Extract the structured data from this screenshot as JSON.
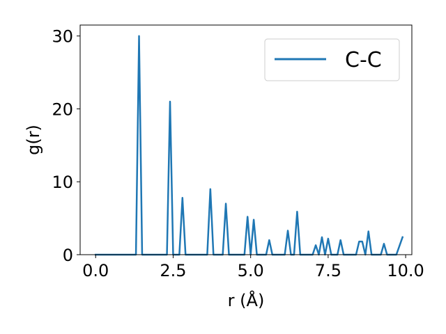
{
  "chart_data": {
    "type": "line",
    "xlabel": "r (Å)",
    "ylabel": "g(r)",
    "xlim": [
      -0.5,
      10.2
    ],
    "ylim": [
      0,
      31.5
    ],
    "grid": false,
    "legend": {
      "position": "upper-right",
      "entries": [
        "C-C"
      ]
    },
    "x_ticks": [
      {
        "value": 0.0,
        "label": "0.0"
      },
      {
        "value": 2.5,
        "label": "2.5"
      },
      {
        "value": 5.0,
        "label": "5.0"
      },
      {
        "value": 7.5,
        "label": "7.5"
      },
      {
        "value": 10.0,
        "label": "10.0"
      }
    ],
    "y_ticks": [
      {
        "value": 0,
        "label": "0"
      },
      {
        "value": 10,
        "label": "10"
      },
      {
        "value": 20,
        "label": "20"
      },
      {
        "value": 30,
        "label": "30"
      }
    ],
    "series": [
      {
        "name": "C-C",
        "color": "#1f77b4",
        "x": [
          0.0,
          0.1,
          0.2,
          0.3,
          0.4,
          0.5,
          0.6,
          0.7,
          0.8,
          0.9,
          1.0,
          1.1,
          1.2,
          1.3,
          1.4,
          1.5,
          1.6,
          1.7,
          1.8,
          1.9,
          2.0,
          2.1,
          2.2,
          2.3,
          2.4,
          2.5,
          2.6,
          2.7,
          2.8,
          2.9,
          3.0,
          3.1,
          3.2,
          3.3,
          3.4,
          3.5,
          3.6,
          3.7,
          3.8,
          3.9,
          4.0,
          4.1,
          4.2,
          4.3,
          4.4,
          4.5,
          4.6,
          4.7,
          4.8,
          4.9,
          5.0,
          5.1,
          5.2,
          5.3,
          5.4,
          5.5,
          5.6,
          5.7,
          5.8,
          5.9,
          6.0,
          6.1,
          6.2,
          6.3,
          6.4,
          6.5,
          6.6,
          6.7,
          6.8,
          6.9,
          7.0,
          7.1,
          7.2,
          7.3,
          7.4,
          7.5,
          7.6,
          7.7,
          7.8,
          7.9,
          8.0,
          8.1,
          8.2,
          8.3,
          8.4,
          8.5,
          8.6,
          8.7,
          8.8,
          8.9,
          9.0,
          9.1,
          9.2,
          9.3,
          9.4,
          9.5,
          9.6,
          9.7,
          9.8,
          9.9
        ],
        "y": [
          0,
          0,
          0,
          0,
          0,
          0,
          0,
          0,
          0,
          0,
          0,
          0,
          0,
          0,
          30.0,
          0,
          0,
          0,
          0,
          0,
          0,
          0,
          0,
          0,
          21.0,
          0,
          0,
          0,
          7.8,
          0,
          0,
          0,
          0,
          0,
          0,
          0,
          0,
          9.0,
          0,
          0,
          0,
          0,
          7.0,
          0,
          0,
          0,
          0,
          0,
          0,
          5.2,
          0,
          4.8,
          0,
          0,
          0,
          0,
          2.0,
          0,
          0,
          0,
          0,
          0,
          3.3,
          0,
          0,
          5.9,
          0,
          0,
          0,
          0,
          0,
          1.3,
          0,
          2.4,
          0,
          2.2,
          0,
          0,
          0,
          2.0,
          0,
          0,
          0,
          0,
          0,
          1.8,
          1.8,
          0,
          3.2,
          0,
          0,
          0,
          0,
          1.5,
          0,
          0,
          0,
          0,
          1.2,
          2.4
        ]
      }
    ]
  }
}
